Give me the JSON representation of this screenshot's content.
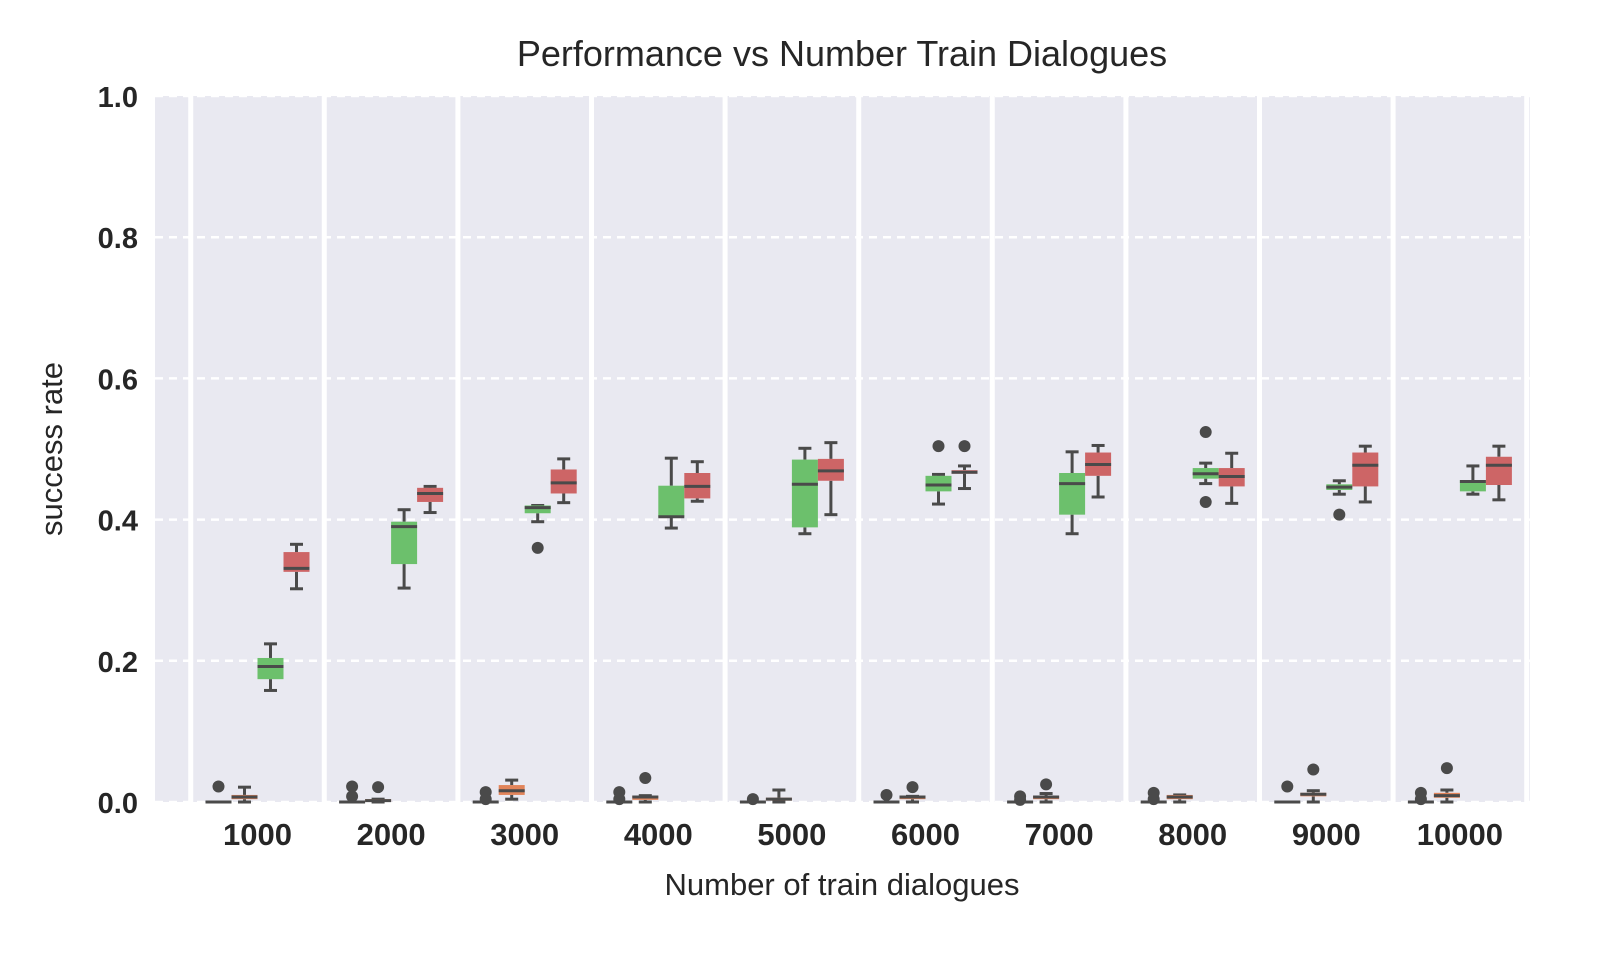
{
  "chart_data": {
    "type": "box",
    "title": "Performance vs Number Train Dialogues",
    "xlabel": "Number of train dialogues",
    "ylabel": "success rate",
    "ylim": [
      0,
      1
    ],
    "yticks": [
      "0.0",
      "0.2",
      "0.4",
      "0.6",
      "0.8",
      "1.0"
    ],
    "categories": [
      "1000",
      "2000",
      "3000",
      "4000",
      "5000",
      "6000",
      "7000",
      "8000",
      "9000",
      "10000"
    ],
    "grid": "dashed horizontal lines, white vertical separators",
    "background": "#e9e9f1",
    "series": [
      {
        "color": "#6d7bb0",
        "boxes": [
          {
            "whislo": 0,
            "q1": 0,
            "med": 0,
            "q3": 0,
            "whishi": 0,
            "fliers": [
              0.022
            ]
          },
          {
            "whislo": 0,
            "q1": 0,
            "med": 0,
            "q3": 0,
            "whishi": 0,
            "fliers": [
              0.022,
              0.008
            ]
          },
          {
            "whislo": 0,
            "q1": 0,
            "med": 0,
            "q3": 0,
            "whishi": 0,
            "fliers": [
              0.014,
              0.004
            ]
          },
          {
            "whislo": 0,
            "q1": 0,
            "med": 0,
            "q3": 0,
            "whishi": 0,
            "fliers": [
              0.014,
              0.004
            ]
          },
          {
            "whislo": 0,
            "q1": 0,
            "med": 0,
            "q3": 0,
            "whishi": 0,
            "fliers": [
              0.004
            ]
          },
          {
            "whislo": 0,
            "q1": 0,
            "med": 0,
            "q3": 0,
            "whishi": 0,
            "fliers": [
              0.01
            ]
          },
          {
            "whislo": 0,
            "q1": 0,
            "med": 0,
            "q3": 0,
            "whishi": 0,
            "fliers": [
              0.008,
              0.003
            ]
          },
          {
            "whislo": 0,
            "q1": 0,
            "med": 0,
            "q3": 0,
            "whishi": 0,
            "fliers": [
              0.013,
              0.004
            ]
          },
          {
            "whislo": 0,
            "q1": 0,
            "med": 0,
            "q3": 0,
            "whishi": 0,
            "fliers": [
              0.022
            ]
          },
          {
            "whislo": 0,
            "q1": 0,
            "med": 0,
            "q3": 0,
            "whishi": 0,
            "fliers": [
              0.013,
              0.004
            ]
          }
        ]
      },
      {
        "color": "#e1845a",
        "boxes": [
          {
            "whislo": 0,
            "q1": 0.004,
            "med": 0.007,
            "q3": 0.01,
            "whishi": 0.021,
            "fliers": []
          },
          {
            "whislo": 0,
            "q1": 0,
            "med": 0.002,
            "q3": 0.004,
            "whishi": 0.004,
            "fliers": [
              0.021
            ]
          },
          {
            "whislo": 0.004,
            "q1": 0.01,
            "med": 0.016,
            "q3": 0.024,
            "whishi": 0.031,
            "fliers": []
          },
          {
            "whislo": 0,
            "q1": 0.003,
            "med": 0.007,
            "q3": 0.009,
            "whishi": 0.009,
            "fliers": [
              0.034
            ]
          },
          {
            "whislo": 0,
            "q1": 0.002,
            "med": 0.004,
            "q3": 0.006,
            "whishi": 0.017,
            "fliers": []
          },
          {
            "whislo": 0,
            "q1": 0.004,
            "med": 0.007,
            "q3": 0.008,
            "whishi": 0.008,
            "fliers": [
              0.021
            ]
          },
          {
            "whislo": 0,
            "q1": 0.004,
            "med": 0.007,
            "q3": 0.009,
            "whishi": 0.012,
            "fliers": [
              0.025
            ]
          },
          {
            "whislo": 0,
            "q1": 0.004,
            "med": 0.007,
            "q3": 0.01,
            "whishi": 0.01,
            "fliers": []
          },
          {
            "whislo": 0,
            "q1": 0.008,
            "med": 0.011,
            "q3": 0.013,
            "whishi": 0.016,
            "fliers": [
              0.046
            ]
          },
          {
            "whislo": 0,
            "q1": 0.006,
            "med": 0.009,
            "q3": 0.013,
            "whishi": 0.017,
            "fliers": [
              0.048
            ]
          }
        ]
      },
      {
        "color": "#6cc06c",
        "boxes": [
          {
            "whislo": 0.158,
            "q1": 0.174,
            "med": 0.192,
            "q3": 0.204,
            "whishi": 0.224,
            "fliers": []
          },
          {
            "whislo": 0.303,
            "q1": 0.337,
            "med": 0.39,
            "q3": 0.397,
            "whishi": 0.414,
            "fliers": []
          },
          {
            "whislo": 0.397,
            "q1": 0.409,
            "med": 0.417,
            "q3": 0.42,
            "whishi": 0.42,
            "fliers": [
              0.36
            ]
          },
          {
            "whislo": 0.388,
            "q1": 0.404,
            "med": 0.404,
            "q3": 0.448,
            "whishi": 0.487,
            "fliers": []
          },
          {
            "whislo": 0.38,
            "q1": 0.389,
            "med": 0.45,
            "q3": 0.485,
            "whishi": 0.501,
            "fliers": []
          },
          {
            "whislo": 0.422,
            "q1": 0.44,
            "med": 0.449,
            "q3": 0.462,
            "whishi": 0.464,
            "fliers": [
              0.504
            ]
          },
          {
            "whislo": 0.38,
            "q1": 0.407,
            "med": 0.451,
            "q3": 0.466,
            "whishi": 0.496,
            "fliers": []
          },
          {
            "whislo": 0.451,
            "q1": 0.458,
            "med": 0.465,
            "q3": 0.473,
            "whishi": 0.48,
            "fliers": [
              0.524,
              0.425
            ]
          },
          {
            "whislo": 0.436,
            "q1": 0.442,
            "med": 0.446,
            "q3": 0.45,
            "whishi": 0.455,
            "fliers": [
              0.407
            ]
          },
          {
            "whislo": 0.436,
            "q1": 0.44,
            "med": 0.454,
            "q3": 0.456,
            "whishi": 0.476,
            "fliers": []
          }
        ]
      },
      {
        "color": "#cd6566",
        "boxes": [
          {
            "whislo": 0.302,
            "q1": 0.326,
            "med": 0.331,
            "q3": 0.354,
            "whishi": 0.365,
            "fliers": []
          },
          {
            "whislo": 0.41,
            "q1": 0.425,
            "med": 0.437,
            "q3": 0.445,
            "whishi": 0.447,
            "fliers": []
          },
          {
            "whislo": 0.424,
            "q1": 0.437,
            "med": 0.452,
            "q3": 0.471,
            "whishi": 0.486,
            "fliers": []
          },
          {
            "whislo": 0.426,
            "q1": 0.43,
            "med": 0.447,
            "q3": 0.466,
            "whishi": 0.482,
            "fliers": []
          },
          {
            "whislo": 0.407,
            "q1": 0.455,
            "med": 0.469,
            "q3": 0.486,
            "whishi": 0.509,
            "fliers": []
          },
          {
            "whislo": 0.444,
            "q1": 0.465,
            "med": 0.467,
            "q3": 0.47,
            "whishi": 0.476,
            "fliers": [
              0.504
            ]
          },
          {
            "whislo": 0.432,
            "q1": 0.462,
            "med": 0.478,
            "q3": 0.495,
            "whishi": 0.505,
            "fliers": []
          },
          {
            "whislo": 0.423,
            "q1": 0.447,
            "med": 0.461,
            "q3": 0.473,
            "whishi": 0.494,
            "fliers": []
          },
          {
            "whislo": 0.425,
            "q1": 0.447,
            "med": 0.477,
            "q3": 0.495,
            "whishi": 0.504,
            "fliers": []
          },
          {
            "whislo": 0.428,
            "q1": 0.449,
            "med": 0.477,
            "q3": 0.489,
            "whishi": 0.504,
            "fliers": []
          }
        ]
      }
    ]
  }
}
